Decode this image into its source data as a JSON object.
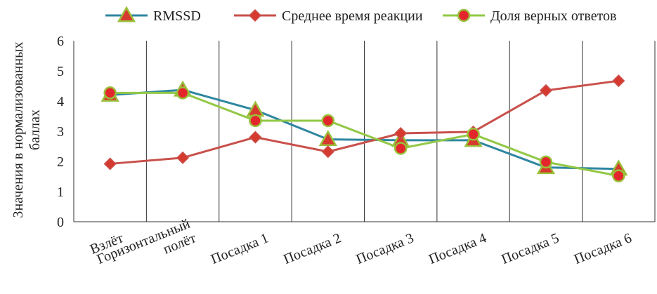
{
  "chart_data": {
    "type": "line",
    "categories": [
      "Взлёт",
      "Горизонтальный\nполёт",
      "Посадка 1",
      "Посадка 2",
      "Посадка 3",
      "Посадка 4",
      "Посадка 5",
      "Посадка 6"
    ],
    "ylabel": "Значения в нормализованных\nбаллах",
    "xlabel": "",
    "ylim": [
      0,
      6
    ],
    "yticks": [
      0,
      1,
      2,
      3,
      4,
      5,
      6
    ],
    "legend_position": "top",
    "grid": "vertical category separators",
    "series": [
      {
        "name": "RMSSD",
        "values": [
          4.2,
          4.37,
          3.7,
          2.73,
          2.7,
          2.7,
          1.8,
          1.75
        ],
        "line_color": "#2e86a0",
        "marker": "triangle",
        "marker_color": "#d63a2f",
        "marker_stroke": "#9bbf3a"
      },
      {
        "name": "Среднее время реакции",
        "values": [
          1.92,
          2.12,
          2.8,
          2.32,
          2.93,
          2.98,
          4.35,
          4.67
        ],
        "line_color": "#c9504b",
        "marker": "diamond",
        "marker_color": "#d63a2f",
        "marker_stroke": "#c9504b"
      },
      {
        "name": "Доля верных ответов",
        "values": [
          4.27,
          4.27,
          3.35,
          3.35,
          2.43,
          2.9,
          1.98,
          1.52
        ],
        "line_color": "#92c846",
        "marker": "circle",
        "marker_color": "#e3262b",
        "marker_stroke": "#9bbf3a"
      }
    ]
  }
}
